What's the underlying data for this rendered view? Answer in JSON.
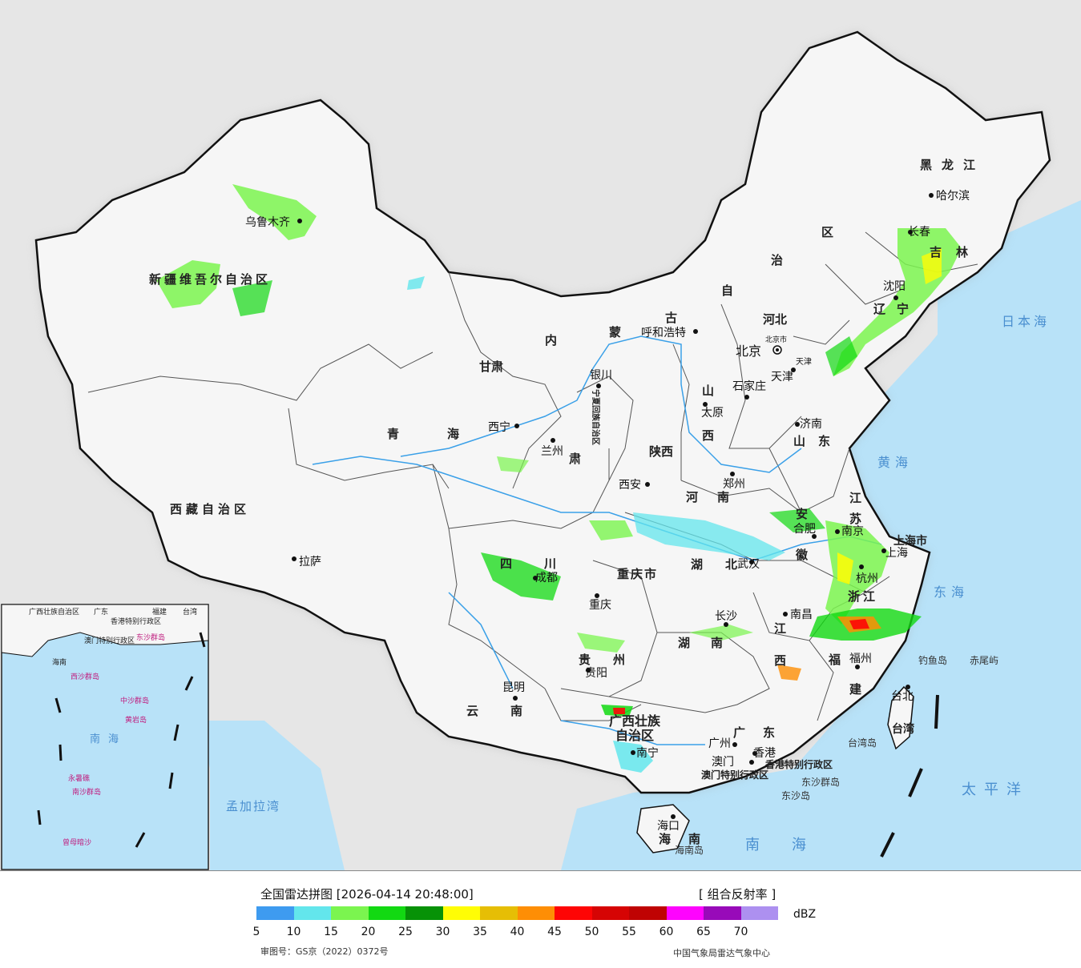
{
  "map": {
    "seas": {
      "japan_sea": "日本海",
      "yellow_sea": "黄海",
      "east_sea": "东海",
      "pacific": "太平洋",
      "south_sea": "南海",
      "bengal_bay": "孟加拉湾"
    },
    "regions": {
      "xinjiang": "新疆维吾尔自治区",
      "xizang": "西藏自治区",
      "qinghai": "青海",
      "gansu": "甘肃",
      "neimenggu_a": "内",
      "neimenggu_b": "蒙",
      "neimenggu_c": "古",
      "neimenggu_d": "自",
      "neimenggu_e": "治",
      "neimenggu_f": "区",
      "heilongjiang": "黑龙江",
      "jilin": "吉林",
      "liaoning": "辽宁",
      "hebei": "河北",
      "shanxi_a": "山",
      "shanxi_b": "西",
      "shandong": "山东",
      "henan": "河南",
      "shaanxi": "陕西",
      "ningxia": "宁夏回族自治区",
      "sichuan": "四川",
      "chongqing": "重庆市",
      "hubei": "湖北",
      "hunan": "湖南",
      "jiangxi_a": "江",
      "jiangxi_b": "西",
      "anhui_a": "安",
      "anhui_b": "徽",
      "jiangsu_a": "江",
      "jiangsu_b": "苏",
      "zhejiang": "浙江",
      "fujian_a": "福",
      "fujian_b": "建",
      "guangdong": "广东",
      "guangxi_a": "广西壮族",
      "guangxi_b": "自治区",
      "guizhou": "贵州",
      "yunnan": "云南",
      "hainan": "海南",
      "taiwan": "台湾",
      "shanghai": "上海市",
      "hk": "香港特别行政区",
      "macau": "澳门特别行政区",
      "gansu_b": "肃",
      "tianjin_r": "天津"
    },
    "cities": {
      "urumqi": "乌鲁木齐",
      "lhasa": "拉萨",
      "xining": "西宁",
      "lanzhou": "兰州",
      "yinchuan": "银川",
      "hohhot": "呼和浩特",
      "beijing": "北京",
      "beijing_small": "北京市",
      "tianjin": "天津",
      "shijiazhuang": "石家庄",
      "taiyuan": "太原",
      "jinan": "济南",
      "zhengzhou": "郑州",
      "xian": "西安",
      "chengdu": "成都",
      "chongqing": "重庆",
      "wuhan": "武汉",
      "hefei": "合肥",
      "nanjing": "南京",
      "shanghai": "上海",
      "hangzhou": "杭州",
      "nanchang": "南昌",
      "changsha": "长沙",
      "fuzhou": "福州",
      "guiyang": "贵阳",
      "kunming": "昆明",
      "nanning": "南宁",
      "guangzhou": "广州",
      "macau_city": "澳门",
      "hongkong": "香港",
      "haikou": "海口",
      "taipei": "台北",
      "harbin": "哈尔滨",
      "changchun": "长春",
      "shenyang": "沈阳"
    },
    "islands": {
      "diaoyu": "钓鱼岛",
      "chiwei": "赤尾屿",
      "taiwan_island": "台湾岛",
      "dongsha_islands": "东沙群岛",
      "dongsha": "东沙岛",
      "hainan_island": "海南岛"
    },
    "inset": {
      "guangxi": "广西壮族自治区",
      "guangdong": "广东",
      "fujian": "福建",
      "taiwan": "台湾",
      "hk": "香港特别行政区",
      "macau": "澳门特别行政区",
      "dongsha": "东沙群岛",
      "hainan": "海南",
      "xisha": "西沙群岛",
      "zhongsha": "中沙群岛",
      "huangyan": "黄岩岛",
      "nansha": "南沙群岛",
      "sea": "南海",
      "yongshu": "永暑礁",
      "zengmu": "曾母暗沙"
    }
  },
  "legend": {
    "title": "全国雷达拼图 [2026-04-14 20:48:00]",
    "product": "[ 组合反射率 ]",
    "unit": "dBZ",
    "colors": [
      "#3e9bf0",
      "#63e6ec",
      "#7bf54f",
      "#12d912",
      "#079207",
      "#fffd05",
      "#e6be05",
      "#fe8e05",
      "#fe0505",
      "#d60404",
      "#bf0303",
      "#fe04fe",
      "#980ab9",
      "#ad90f0"
    ],
    "ticks": [
      "5",
      "10",
      "15",
      "20",
      "25",
      "30",
      "35",
      "40",
      "45",
      "50",
      "55",
      "60",
      "65",
      "70"
    ],
    "approval": "审图号：GS京（2022）0372号",
    "agency": "中国气象局雷达气象中心"
  }
}
